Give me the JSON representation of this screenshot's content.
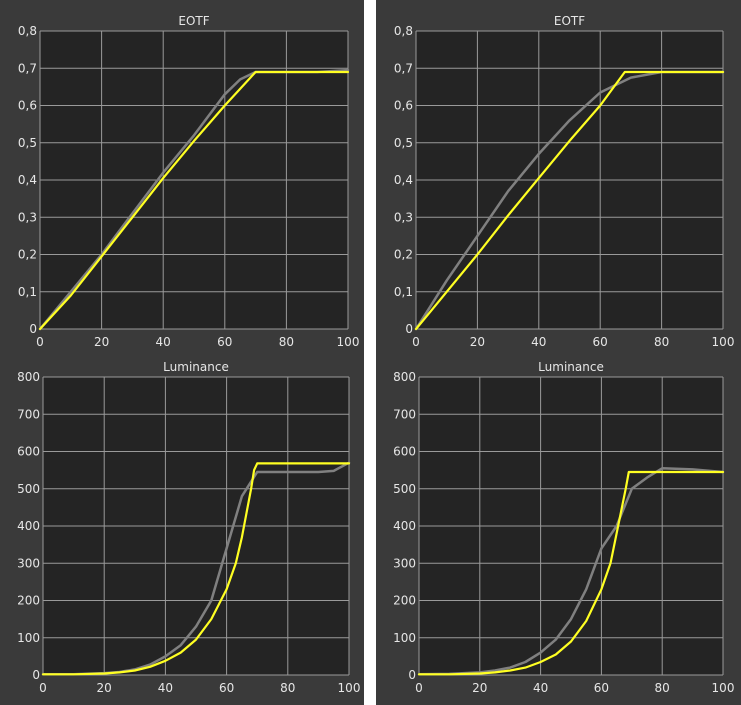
{
  "colors": {
    "background": "#3a3a3a",
    "plot_background": "#242424",
    "grid": "#9a9a9a",
    "text": "#e6e6e6",
    "measured": "#808080",
    "target": "#ffff22"
  },
  "chart_data": [
    {
      "type": "line",
      "title": "EOTF",
      "xlim": [
        0,
        100
      ],
      "ylim": [
        0,
        0.8
      ],
      "x_ticks": [
        "0",
        "20",
        "40",
        "60",
        "80",
        "100"
      ],
      "y_ticks": [
        "0",
        "0,1",
        "0,2",
        "0,3",
        "0,4",
        "0,5",
        "0,6",
        "0,7",
        "0,8"
      ],
      "grid": true,
      "series": [
        {
          "color": "#808080",
          "x": [
            0,
            5,
            10,
            20,
            30,
            40,
            50,
            60,
            65,
            70,
            80,
            90,
            100
          ],
          "y": [
            0,
            0.05,
            0.1,
            0.2,
            0.31,
            0.42,
            0.52,
            0.63,
            0.67,
            0.69,
            0.69,
            0.69,
            0.695
          ]
        },
        {
          "color": "#ffff22",
          "x": [
            0,
            5,
            10,
            20,
            30,
            40,
            50,
            60,
            65,
            70,
            80,
            90,
            100
          ],
          "y": [
            0,
            0.045,
            0.09,
            0.195,
            0.3,
            0.405,
            0.505,
            0.6,
            0.645,
            0.69,
            0.69,
            0.69,
            0.69
          ]
        }
      ]
    },
    {
      "type": "line",
      "title": "EOTF",
      "xlim": [
        0,
        100
      ],
      "ylim": [
        0,
        0.8
      ],
      "x_ticks": [
        "0",
        "20",
        "40",
        "60",
        "80",
        "100"
      ],
      "y_ticks": [
        "0",
        "0,1",
        "0,2",
        "0,3",
        "0,4",
        "0,5",
        "0,6",
        "0,7",
        "0,8"
      ],
      "grid": true,
      "series": [
        {
          "color": "#808080",
          "x": [
            0,
            5,
            10,
            20,
            30,
            40,
            50,
            60,
            70,
            80,
            90,
            100
          ],
          "y": [
            0,
            0.065,
            0.13,
            0.25,
            0.37,
            0.47,
            0.56,
            0.635,
            0.675,
            0.69,
            0.69,
            0.69
          ]
        },
        {
          "color": "#ffff22",
          "x": [
            0,
            5,
            10,
            20,
            30,
            40,
            50,
            60,
            68,
            70,
            80,
            90,
            100
          ],
          "y": [
            0,
            0.05,
            0.1,
            0.2,
            0.305,
            0.405,
            0.505,
            0.6,
            0.69,
            0.69,
            0.69,
            0.69,
            0.69
          ]
        }
      ]
    },
    {
      "type": "line",
      "title": "Luminance",
      "xlim": [
        0,
        100
      ],
      "ylim": [
        0,
        800
      ],
      "x_ticks": [
        "0",
        "20",
        "40",
        "60",
        "80",
        "100"
      ],
      "y_ticks": [
        "0",
        "100",
        "200",
        "300",
        "400",
        "500",
        "600",
        "700",
        "800"
      ],
      "grid": true,
      "series": [
        {
          "color": "#808080",
          "x": [
            0,
            10,
            20,
            25,
            30,
            35,
            40,
            45,
            50,
            55,
            60,
            65,
            70,
            80,
            90,
            95,
            100
          ],
          "y": [
            2,
            2,
            5,
            8,
            15,
            28,
            50,
            80,
            130,
            200,
            340,
            480,
            545,
            545,
            545,
            548,
            570
          ]
        },
        {
          "color": "#ffff22",
          "x": [
            0,
            10,
            20,
            25,
            30,
            35,
            40,
            45,
            50,
            55,
            60,
            63,
            65,
            68,
            69,
            70,
            80,
            90,
            100
          ],
          "y": [
            2,
            2,
            4,
            7,
            12,
            22,
            38,
            60,
            95,
            150,
            230,
            300,
            370,
            500,
            550,
            568,
            568,
            568,
            568
          ]
        }
      ]
    },
    {
      "type": "line",
      "title": "Luminance",
      "xlim": [
        0,
        100
      ],
      "ylim": [
        0,
        800
      ],
      "x_ticks": [
        "0",
        "20",
        "40",
        "60",
        "80",
        "100"
      ],
      "y_ticks": [
        "0",
        "100",
        "200",
        "300",
        "400",
        "500",
        "600",
        "700",
        "800"
      ],
      "grid": true,
      "series": [
        {
          "color": "#808080",
          "x": [
            0,
            10,
            20,
            25,
            30,
            35,
            40,
            45,
            50,
            55,
            60,
            65,
            70,
            75,
            80,
            90,
            100
          ],
          "y": [
            2,
            3,
            7,
            12,
            20,
            35,
            60,
            95,
            150,
            230,
            340,
            400,
            500,
            530,
            555,
            552,
            545
          ]
        },
        {
          "color": "#ffff22",
          "x": [
            0,
            10,
            20,
            25,
            30,
            35,
            40,
            45,
            50,
            55,
            60,
            63,
            65,
            68,
            69,
            80,
            90,
            100
          ],
          "y": [
            2,
            2,
            4,
            7,
            12,
            20,
            35,
            55,
            90,
            145,
            230,
            300,
            380,
            500,
            545,
            545,
            545,
            545
          ]
        }
      ]
    }
  ]
}
